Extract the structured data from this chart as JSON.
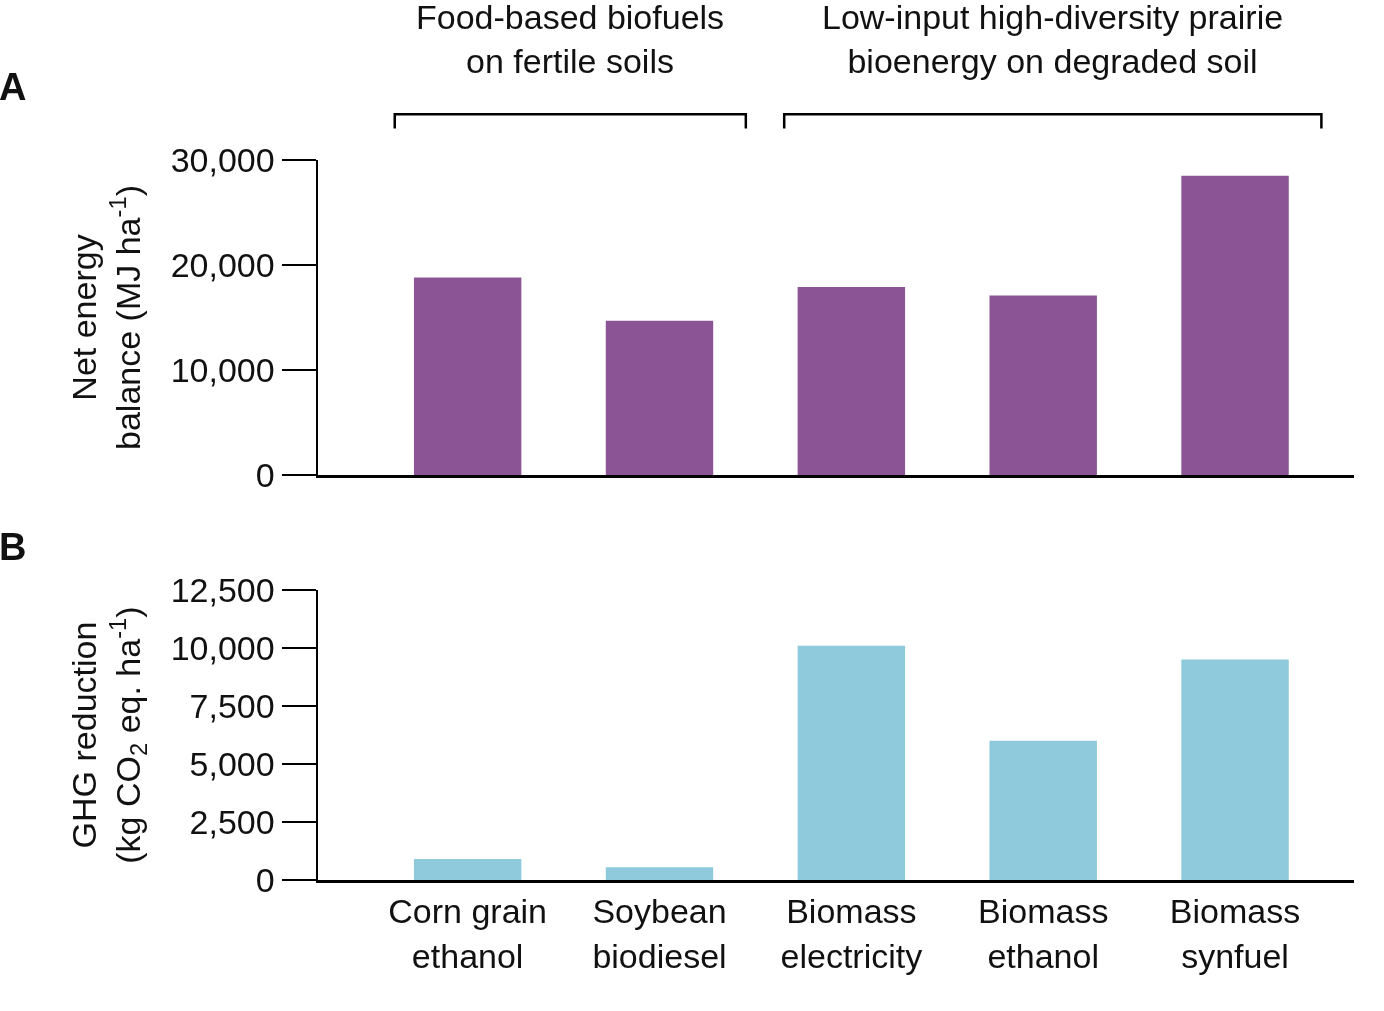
{
  "chart_data": [
    {
      "type": "bar",
      "ylabel": "Net energy\nbalance (MJ ha$^{-1}$)",
      "categories": [
        null,
        null,
        null,
        null,
        null
      ],
      "values": [
        18800,
        14700,
        17900,
        17100,
        28500
      ],
      "color": "#8b5595",
      "ylim": [
        0,
        30000
      ],
      "yticks": [
        0,
        {
          "value": 10000,
          "label": "10,000"
        },
        {
          "value": 20000,
          "label": "20,000"
        },
        {
          "value": 30000,
          "label": "30,000"
        }
      ],
      "grid": false,
      "legend": false,
      "tick_labels": "y",
      "annotations": [
        "A",
        "Food-based biofuels\non fertile soils",
        "Low-input high-diversity prairie\nbioenergy on degraded soil"
      ]
    },
    {
      "type": "bar",
      "ylabel": "GHG reduction\n(kg CO$_{2}$ eq. ha$^{-1}$)",
      "categories": [
        "Corn grain\nethanol",
        "Soybean\nbiodiesel",
        "Biomass\nelectricity",
        "Biomass\nethanol",
        "Biomass\nsynfuel"
      ],
      "values": [
        900,
        550,
        10100,
        6000,
        9500
      ],
      "color": "#8ecadb",
      "ylim": [
        0,
        12500
      ],
      "yticks": [
        0,
        {
          "value": 2500,
          "label": "2,500"
        },
        {
          "value": 5000,
          "label": "5,000"
        },
        {
          "value": 7500,
          "label": "7,500"
        },
        {
          "value": 10000,
          "label": "10,000"
        },
        {
          "value": 12500,
          "label": "12,500"
        }
      ],
      "grid": false,
      "legend": false,
      "annotations": [
        "B"
      ]
    }
  ]
}
